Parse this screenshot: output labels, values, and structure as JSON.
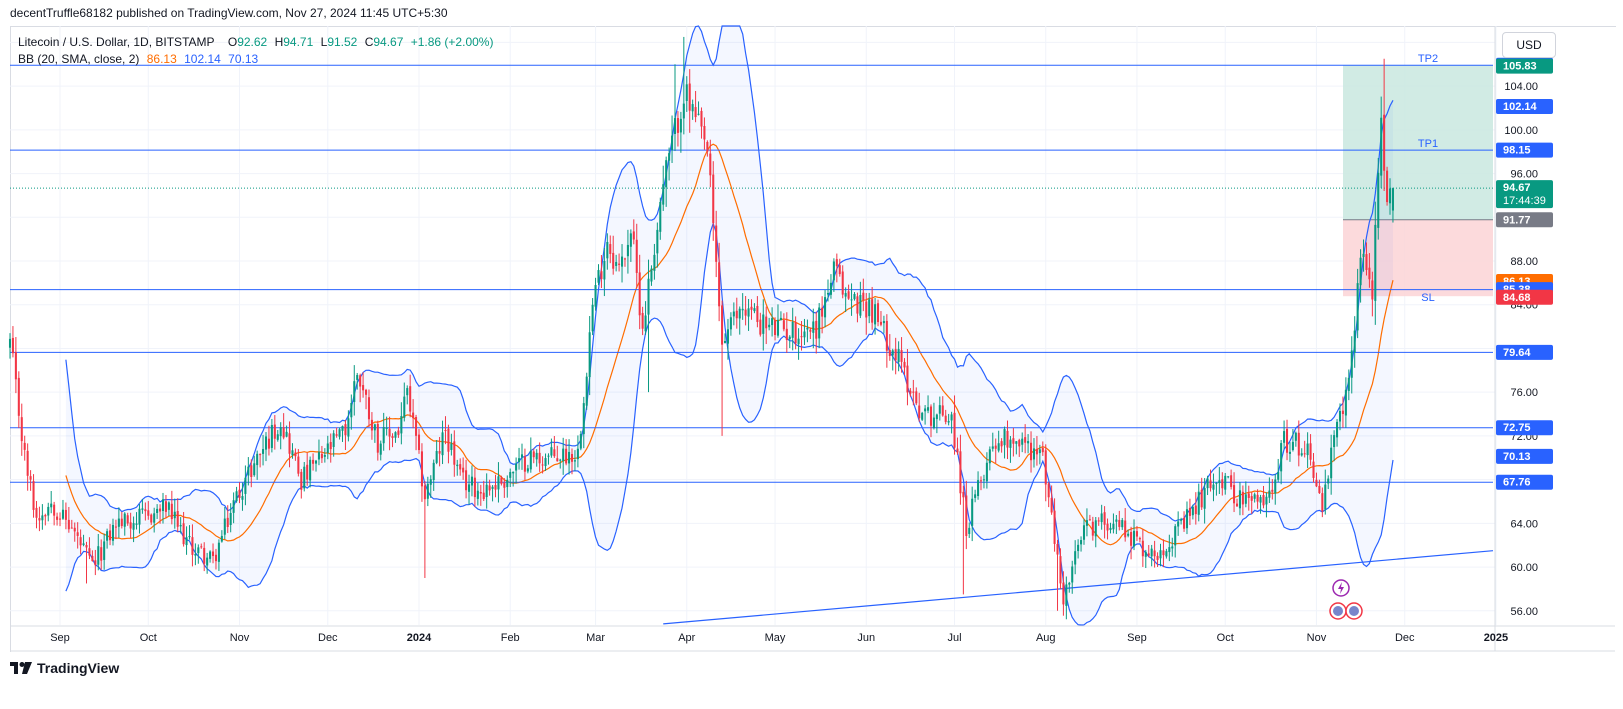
{
  "publish_line": "decentTruffle68182 published on TradingView.com, Nov 27, 2024 11:45 UTC+5:30",
  "legend": {
    "symbol": "Litecoin / U.S. Dollar, 1D, BITSTAMP",
    "o_label": "O",
    "o": "92.62",
    "h_label": "H",
    "h": "94.71",
    "l_label": "L",
    "l": "91.52",
    "c_label": "C",
    "c": "94.67",
    "change": "+1.86 (+2.00%)",
    "bb_name": "BB (20, SMA, close, 2)",
    "bb_basis": "86.13",
    "bb_upper": "102.14",
    "bb_lower": "70.13"
  },
  "currency": "USD",
  "footer": "TradingView",
  "colors": {
    "up": "#089981",
    "down": "#f23645",
    "bb_band": "#2962ff",
    "bb_basis": "#ff6d00",
    "hline": "#2962ff",
    "profit_zone": "#c9e8df",
    "loss_zone": "#fbd3d6"
  },
  "chart_data": {
    "type": "candlestick",
    "symbol": "LTCUSD",
    "timeframe": "1D",
    "ylim": [
      54.7,
      109.5
    ],
    "y_ticks": [
      "56.00",
      "60.00",
      "64.00",
      "68.00",
      "72.00",
      "76.00",
      "80.00",
      "84.00",
      "88.00",
      "92.00",
      "96.00",
      "100.00",
      "104.00",
      "108.00"
    ],
    "x_ticks": [
      "Sep",
      "Oct",
      "Nov",
      "Dec",
      "2024",
      "Feb",
      "Mar",
      "Apr",
      "May",
      "Jun",
      "Jul",
      "Aug",
      "Sep",
      "Oct",
      "Nov",
      "Dec",
      "2025"
    ],
    "horizontal_levels": [
      105.91,
      98.15,
      85.38,
      79.64,
      72.75,
      67.76
    ],
    "trendline": {
      "start": [
        "2024-03-24",
        54.8
      ],
      "end": [
        "2024-12-31",
        61.5
      ]
    },
    "position": {
      "tp2_label": "TP2",
      "tp1_label": "TP1",
      "sl_label": "SL",
      "tp2": 105.91,
      "tp1": 98.15,
      "entry": 91.77,
      "sl": 85.38
    },
    "price_labels": [
      {
        "text": "105.91",
        "value": 105.91,
        "color": "#2962ff"
      },
      {
        "text": "105.83",
        "value": 105.83,
        "color": "#089981"
      },
      {
        "text": "102.14",
        "value": 102.14,
        "color": "#2962ff"
      },
      {
        "text": "98.15",
        "value": 98.15,
        "color": "#2962ff"
      },
      {
        "text": "94.67",
        "value": 94.67,
        "color": "#089981",
        "sub": "17:44:39"
      },
      {
        "text": "91.77",
        "value": 91.77,
        "color": "#787b86"
      },
      {
        "text": "86.13",
        "value": 86.13,
        "color": "#ff6d00"
      },
      {
        "text": "85.38",
        "value": 85.38,
        "color": "#2962ff"
      },
      {
        "text": "84.68",
        "value": 84.68,
        "color": "#f23645"
      },
      {
        "text": "79.64",
        "value": 79.64,
        "color": "#2962ff"
      },
      {
        "text": "72.75",
        "value": 72.75,
        "color": "#2962ff"
      },
      {
        "text": "70.13",
        "value": 70.13,
        "color": "#2962ff"
      },
      {
        "text": "67.76",
        "value": 67.76,
        "color": "#2962ff"
      }
    ],
    "anchors": [
      [
        "2023-08-15",
        80.5
      ],
      [
        "2023-08-20",
        70.0
      ],
      [
        "2023-08-24",
        64.5
      ],
      [
        "2023-08-29",
        66.0
      ],
      [
        "2023-09-05",
        63.5
      ],
      [
        "2023-09-12",
        60.0
      ],
      [
        "2023-09-20",
        64.0
      ],
      [
        "2023-09-30",
        64.5
      ],
      [
        "2023-10-07",
        65.5
      ],
      [
        "2023-10-15",
        62.0
      ],
      [
        "2023-10-23",
        60.5
      ],
      [
        "2023-10-31",
        66.5
      ],
      [
        "2023-11-08",
        70.5
      ],
      [
        "2023-11-15",
        73.5
      ],
      [
        "2023-11-22",
        68.0
      ],
      [
        "2023-11-29",
        70.0
      ],
      [
        "2023-12-07",
        72.5
      ],
      [
        "2023-12-11",
        78.0
      ],
      [
        "2023-12-18",
        71.5
      ],
      [
        "2023-12-25",
        72.5
      ],
      [
        "2023-12-28",
        76.0
      ],
      [
        "2024-01-03",
        66.5
      ],
      [
        "2024-01-10",
        72.5
      ],
      [
        "2024-01-15",
        68.0
      ],
      [
        "2024-01-22",
        67.0
      ],
      [
        "2024-01-30",
        68.0
      ],
      [
        "2024-02-07",
        70.0
      ],
      [
        "2024-02-14",
        70.0
      ],
      [
        "2024-02-24",
        70.5
      ],
      [
        "2024-02-29",
        84.0
      ],
      [
        "2024-03-05",
        90.0
      ],
      [
        "2024-03-09",
        87.0
      ],
      [
        "2024-03-13",
        91.0
      ],
      [
        "2024-03-17",
        82.0
      ],
      [
        "2024-03-24",
        95.0
      ],
      [
        "2024-03-31",
        103.5
      ],
      [
        "2024-04-08",
        98.0
      ],
      [
        "2024-04-13",
        80.5
      ],
      [
        "2024-04-20",
        84.0
      ],
      [
        "2024-04-28",
        82.0
      ],
      [
        "2024-05-08",
        81.5
      ],
      [
        "2024-05-15",
        82.0
      ],
      [
        "2024-05-21",
        87.0
      ],
      [
        "2024-05-26",
        84.5
      ],
      [
        "2024-06-02",
        84.0
      ],
      [
        "2024-06-11",
        79.5
      ],
      [
        "2024-06-20",
        74.0
      ],
      [
        "2024-06-30",
        74.0
      ],
      [
        "2024-07-05",
        63.5
      ],
      [
        "2024-07-14",
        71.5
      ],
      [
        "2024-07-21",
        72.0
      ],
      [
        "2024-07-31",
        70.0
      ],
      [
        "2024-08-04",
        62.5
      ],
      [
        "2024-08-07",
        57.0
      ],
      [
        "2024-08-14",
        63.5
      ],
      [
        "2024-08-24",
        64.5
      ],
      [
        "2024-09-06",
        61.0
      ],
      [
        "2024-09-16",
        63.5
      ],
      [
        "2024-09-28",
        68.5
      ],
      [
        "2024-10-07",
        66.0
      ],
      [
        "2024-10-15",
        66.0
      ],
      [
        "2024-10-21",
        71.5
      ],
      [
        "2024-10-29",
        71.0
      ],
      [
        "2024-11-03",
        65.5
      ],
      [
        "2024-11-07",
        71.5
      ],
      [
        "2024-11-12",
        76.5
      ],
      [
        "2024-11-16",
        89.0
      ],
      [
        "2024-11-20",
        85.5
      ],
      [
        "2024-11-23",
        100.0
      ],
      [
        "2024-11-25",
        92.5
      ],
      [
        "2024-11-27",
        94.67
      ]
    ]
  }
}
